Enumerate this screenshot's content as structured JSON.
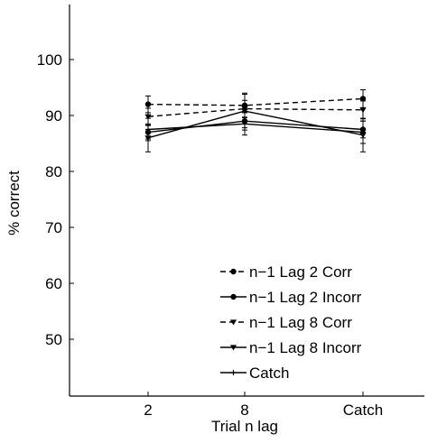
{
  "chart_data": {
    "type": "line",
    "xlabel": "Trial n lag",
    "ylabel": "% correct",
    "categories": [
      "2",
      "8",
      "Catch"
    ],
    "ylim": [
      40,
      110
    ],
    "yticks": [
      50,
      60,
      70,
      80,
      90,
      100
    ],
    "grid": false,
    "legend_position": "lower-right",
    "series": [
      {
        "name": "n−1 Lag 2 Corr",
        "line": "dashed",
        "marker": "circle",
        "values": [
          92.0,
          91.8,
          93.0
        ],
        "err": [
          1.5,
          2.2,
          1.6
        ]
      },
      {
        "name": "n−1 Lag 2 Incorr",
        "line": "solid",
        "marker": "circle",
        "values": [
          87.0,
          89.0,
          87.5
        ],
        "err": [
          1.2,
          1.6,
          1.5
        ]
      },
      {
        "name": "n−1 Lag 8 Corr",
        "line": "dashed",
        "marker": "triangle-down",
        "values": [
          89.8,
          91.2,
          91.0
        ],
        "err": [
          1.5,
          1.5,
          1.6
        ]
      },
      {
        "name": "n−1 Lag 8 Incorr",
        "line": "solid",
        "marker": "triangle-down",
        "values": [
          86.0,
          90.8,
          86.5
        ],
        "err": [
          2.5,
          3.0,
          3.0
        ]
      },
      {
        "name": "Catch",
        "line": "solid",
        "marker": "cross",
        "values": [
          87.5,
          88.5,
          87.0
        ],
        "err": [
          2.0,
          2.0,
          2.0
        ]
      }
    ]
  }
}
